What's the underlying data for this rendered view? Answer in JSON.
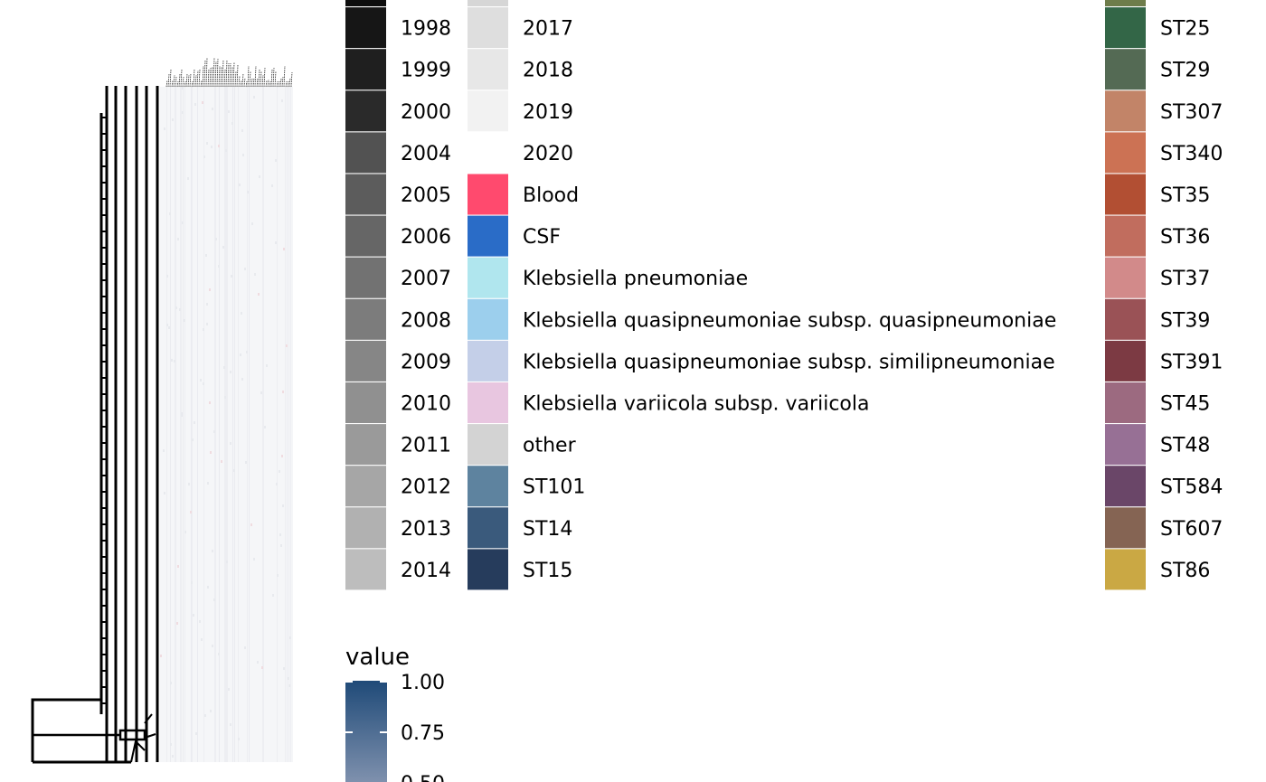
{
  "chart_data": {
    "type": "heatmap",
    "description_free": true,
    "legend_columns": [
      {
        "key": "years",
        "entries": [
          {
            "label": "",
            "color": "#0d0d0d"
          },
          {
            "label": "1998",
            "color": "#161616"
          },
          {
            "label": "1999",
            "color": "#1f1f1f"
          },
          {
            "label": "2000",
            "color": "#2a2a2a"
          },
          {
            "label": "2004",
            "color": "#525252"
          },
          {
            "label": "2005",
            "color": "#5c5c5c"
          },
          {
            "label": "2006",
            "color": "#666666"
          },
          {
            "label": "2007",
            "color": "#727272"
          },
          {
            "label": "2008",
            "color": "#7c7c7c"
          },
          {
            "label": "2009",
            "color": "#868686"
          },
          {
            "label": "2010",
            "color": "#909090"
          },
          {
            "label": "2011",
            "color": "#9a9a9a"
          },
          {
            "label": "2012",
            "color": "#a6a6a6"
          },
          {
            "label": "2013",
            "color": "#b1b1b1"
          },
          {
            "label": "2014",
            "color": "#bdbdbd"
          }
        ]
      },
      {
        "key": "categories",
        "entries": [
          {
            "label": "",
            "color": "#d6d6d6"
          },
          {
            "label": "2017",
            "color": "#dedede"
          },
          {
            "label": "2018",
            "color": "#e7e7e7"
          },
          {
            "label": "2019",
            "color": "#f2f2f2"
          },
          {
            "label": "2020",
            "color": "#ffffff"
          },
          {
            "label": "Blood",
            "color": "#ff4a6e"
          },
          {
            "label": "CSF",
            "color": "#2a6cc7"
          },
          {
            "label": "Klebsiella pneumoniae",
            "color": "#b0e6ee"
          },
          {
            "label": "Klebsiella quasipneumoniae subsp. quasipneumoniae",
            "color": "#9ccfed"
          },
          {
            "label": "Klebsiella quasipneumoniae subsp. similipneumoniae",
            "color": "#c4cfe8"
          },
          {
            "label": "Klebsiella variicola subsp. variicola",
            "color": "#e8c6e0"
          },
          {
            "label": "other",
            "color": "#d3d3d3"
          },
          {
            "label": "ST101",
            "color": "#5e839f"
          },
          {
            "label": "ST14",
            "color": "#3a5a7c"
          },
          {
            "label": "ST15",
            "color": "#263c5c"
          }
        ]
      },
      {
        "key": "sequence_types",
        "entries": [
          {
            "label": "",
            "color": "#6e7c4a"
          },
          {
            "label": "ST25",
            "color": "#336647"
          },
          {
            "label": "ST29",
            "color": "#546a54"
          },
          {
            "label": "ST307",
            "color": "#c28468"
          },
          {
            "label": "ST340",
            "color": "#cc7254"
          },
          {
            "label": "ST35",
            "color": "#b24f33"
          },
          {
            "label": "ST36",
            "color": "#c16d5e"
          },
          {
            "label": "ST37",
            "color": "#d28a8a"
          },
          {
            "label": "ST39",
            "color": "#9a5256"
          },
          {
            "label": "ST391",
            "color": "#7c3a43"
          },
          {
            "label": "ST45",
            "color": "#9c6a80"
          },
          {
            "label": "ST48",
            "color": "#977095"
          },
          {
            "label": "ST584",
            "color": "#6a4668"
          },
          {
            "label": "ST607",
            "color": "#856453"
          },
          {
            "label": "ST86",
            "color": "#caa844"
          }
        ]
      }
    ],
    "colorbar": {
      "title": "value",
      "ticks": [
        {
          "value": 1.0,
          "label": "1.00"
        },
        {
          "value": 0.75,
          "label": "0.75"
        },
        {
          "value": 0.5,
          "label": "0.50"
        }
      ],
      "color_high": "#1f4a78",
      "color_low": "#8e9cb6"
    },
    "heatmap_colors": {
      "background": "#f5f6f8",
      "cell_light": "#e8eaee",
      "cell_accent": "#f0dce0"
    },
    "tree_color": "#000000"
  }
}
